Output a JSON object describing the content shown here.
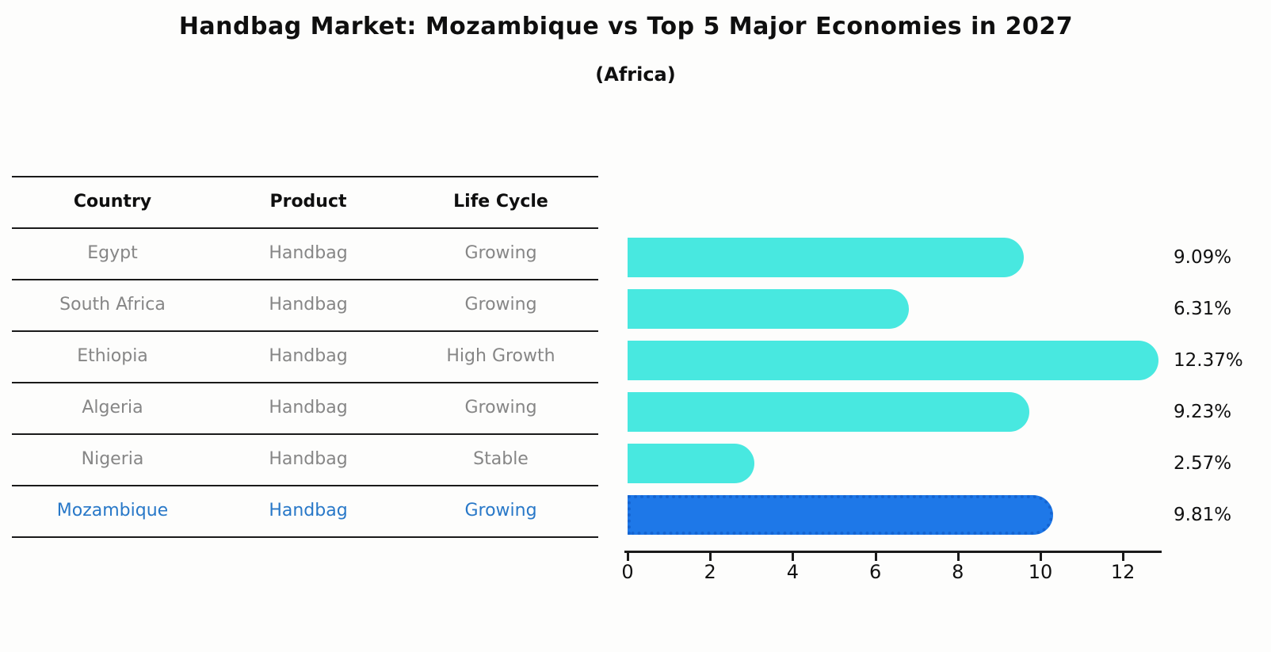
{
  "title": "Handbag Market: Mozambique vs Top 5 Major Economies in 2027",
  "subtitle": "(Africa)",
  "colors": {
    "bar_cyan": "#48e8e0",
    "bar_highlight_blue": "#1e78e8",
    "highlight_text_blue": "#2878c8",
    "row_text_gray": "#868686",
    "text_black": "#0f0f0f"
  },
  "table": {
    "headers": [
      "Country",
      "Product",
      "Life Cycle"
    ],
    "rows": [
      {
        "country": "Egypt",
        "product": "Handbag",
        "life_cycle": "Growing",
        "highlight": false
      },
      {
        "country": "South Africa",
        "product": "Handbag",
        "life_cycle": "Growing",
        "highlight": false
      },
      {
        "country": "Ethiopia",
        "product": "Handbag",
        "life_cycle": "High Growth",
        "highlight": false
      },
      {
        "country": "Algeria",
        "product": "Handbag",
        "life_cycle": "Growing",
        "highlight": false
      },
      {
        "country": "Nigeria",
        "product": "Handbag",
        "life_cycle": "Stable",
        "highlight": false
      },
      {
        "country": "Mozambique",
        "product": "Handbag",
        "life_cycle": "Growing",
        "highlight": true
      }
    ]
  },
  "chart_data": {
    "type": "bar",
    "orientation": "horizontal",
    "title": "Handbag Market: Mozambique vs Top 5 Major Economies in 2027 (Africa)",
    "categories": [
      "Egypt",
      "South Africa",
      "Ethiopia",
      "Algeria",
      "Nigeria",
      "Mozambique"
    ],
    "values": [
      9.09,
      6.31,
      12.37,
      9.23,
      2.57,
      9.81
    ],
    "value_labels": [
      "9.09%",
      "6.31%",
      "12.37%",
      "9.23%",
      "2.57%",
      "9.81%"
    ],
    "highlight_category": "Mozambique",
    "xlabel": "",
    "ylabel": "",
    "xlim": [
      0,
      13
    ],
    "x_ticks": [
      0,
      2,
      4,
      6,
      8,
      10,
      12
    ],
    "grid": false,
    "legend": null
  }
}
